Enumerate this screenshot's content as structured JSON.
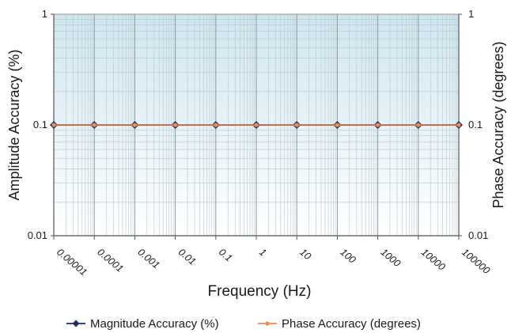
{
  "chart_data": {
    "type": "line",
    "title": "",
    "xlabel": "Frequency (Hz)",
    "ylabel": "Amplitude Accuracy (%)",
    "ylabel_right": "Phase Accuracy (degrees)",
    "x_scale": "log",
    "y_scale": "log",
    "xlim": [
      1e-05,
      100000
    ],
    "ylim": [
      0.01,
      1
    ],
    "grid": true,
    "legend_position": "bottom",
    "background_gradient": [
      "#cfe6ef",
      "#ffffff"
    ],
    "x_ticks": [
      {
        "value": 1e-05,
        "label": "0.00001"
      },
      {
        "value": 0.0001,
        "label": "0.0001"
      },
      {
        "value": 0.001,
        "label": "0.001"
      },
      {
        "value": 0.01,
        "label": "0.01"
      },
      {
        "value": 0.1,
        "label": "0.1"
      },
      {
        "value": 1,
        "label": "1"
      },
      {
        "value": 10,
        "label": "10"
      },
      {
        "value": 100,
        "label": "100"
      },
      {
        "value": 1000,
        "label": "1000"
      },
      {
        "value": 10000,
        "label": "10000"
      },
      {
        "value": 100000,
        "label": "100000"
      }
    ],
    "y_ticks": [
      {
        "value": 1,
        "label": "1"
      },
      {
        "value": 0.1,
        "label": "0.1"
      },
      {
        "value": 0.01,
        "label": "0.01"
      }
    ],
    "y_ticks_right": [
      {
        "value": 1,
        "label": "1"
      },
      {
        "value": 0.1,
        "label": "0.1"
      },
      {
        "value": 0.01,
        "label": "0.01"
      }
    ],
    "series": [
      {
        "name": "Magnitude Accuracy (%)",
        "color": "#1f2a6b",
        "marker": "diamond",
        "x": [
          1e-05,
          0.0001,
          0.001,
          0.01,
          0.1,
          1,
          10,
          100,
          1000,
          10000,
          100000
        ],
        "values": [
          0.1,
          0.1,
          0.1,
          0.1,
          0.1,
          0.1,
          0.1,
          0.1,
          0.1,
          0.1,
          0.1
        ]
      },
      {
        "name": "Phase Accuracy (degrees)",
        "color": "#f28a4b",
        "marker": "circle",
        "x": [
          1e-05,
          0.0001,
          0.001,
          0.01,
          0.1,
          1,
          10,
          100,
          1000,
          10000,
          100000
        ],
        "values": [
          0.1,
          0.1,
          0.1,
          0.1,
          0.1,
          0.1,
          0.1,
          0.1,
          0.1,
          0.1,
          0.1
        ]
      }
    ]
  }
}
